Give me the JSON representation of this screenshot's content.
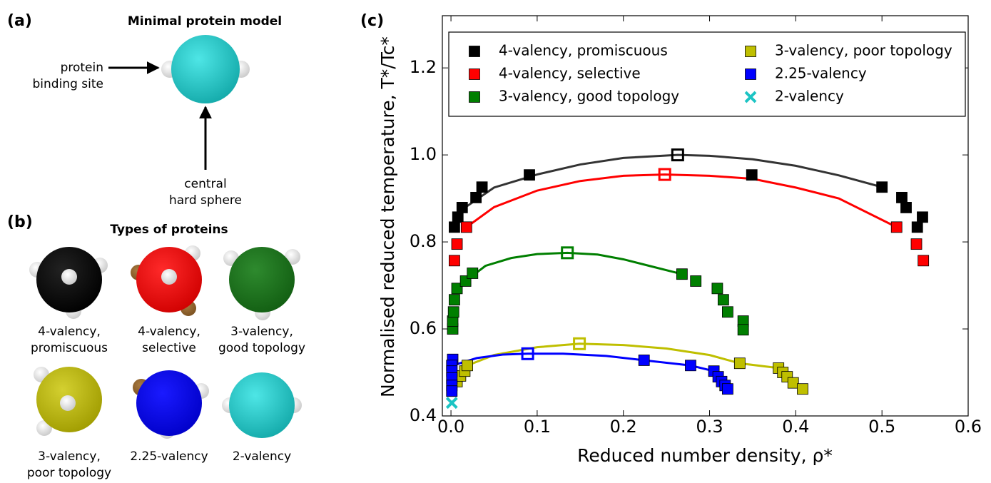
{
  "panel_a": {
    "label": "(a)",
    "title": "Minimal protein model",
    "binding_site": [
      "protein",
      "binding site"
    ],
    "sphere": [
      "central",
      "hard sphere"
    ]
  },
  "panel_b": {
    "label": "(b)",
    "title": "Types of proteins",
    "proteins": [
      [
        "4-valency,",
        "promiscuous"
      ],
      [
        "4-valency,",
        "selective"
      ],
      [
        "3-valency,",
        "good topology"
      ],
      [
        "3-valency,",
        "poor topology"
      ],
      [
        "2.25-valency"
      ],
      [
        "2-valency"
      ]
    ]
  },
  "chart_data": {
    "type": "scatter",
    "panel_label": "(c)",
    "xlabel": "Reduced number density, ρ*",
    "ylabel": "Normalised reduced temperature, T*/Tc*",
    "xlim": [
      -0.01,
      0.6
    ],
    "ylim": [
      0.4,
      1.32
    ],
    "xticks": [
      {
        "value": 0,
        "label": "0.0"
      },
      0.1,
      0.2,
      0.3,
      0.4,
      0.5,
      0.6
    ],
    "yticks": [
      0.4,
      0.6,
      0.8,
      {
        "value": 1,
        "label": "1.0"
      },
      1.2
    ],
    "legend": "upper center",
    "legend_columns": 2,
    "series": [
      {
        "name": "4-valency, promiscuous",
        "color": "#000000",
        "marker": "square",
        "x": [
          0.004,
          0.008,
          0.013,
          0.029,
          0.036,
          0.091,
          0.349,
          0.5,
          0.523,
          0.528,
          0.547,
          0.541
        ],
        "values": [
          0.834,
          0.857,
          0.879,
          0.902,
          0.926,
          0.954,
          0.954,
          0.926,
          0.902,
          0.879,
          0.857,
          0.834
        ],
        "critical": {
          "x": 0.263,
          "value": 1.0
        },
        "fit_x": [
          0.017,
          0.05,
          0.1,
          0.15,
          0.2,
          0.263,
          0.3,
          0.35,
          0.4,
          0.45,
          0.5
        ],
        "fit_values": [
          0.88,
          0.925,
          0.955,
          0.978,
          0.993,
          1.0,
          0.998,
          0.99,
          0.975,
          0.953,
          0.926
        ]
      },
      {
        "name": "4-valency, selective",
        "color": "#ff0000",
        "marker": "square",
        "x": [
          0.004,
          0.007,
          0.018,
          0.517,
          0.54,
          0.548
        ],
        "values": [
          0.757,
          0.795,
          0.834,
          0.834,
          0.795,
          0.757
        ],
        "critical": {
          "x": 0.248,
          "value": 0.955
        },
        "fit_x": [
          0.018,
          0.05,
          0.1,
          0.15,
          0.2,
          0.248,
          0.3,
          0.35,
          0.4,
          0.45,
          0.517
        ],
        "fit_values": [
          0.834,
          0.88,
          0.918,
          0.94,
          0.952,
          0.955,
          0.952,
          0.945,
          0.925,
          0.9,
          0.834
        ]
      },
      {
        "name": "3-valency, good topology",
        "color": "#007f00",
        "marker": "square",
        "x": [
          0.002,
          0.002,
          0.003,
          0.004,
          0.007,
          0.017,
          0.025,
          0.268,
          0.284,
          0.309,
          0.316,
          0.321,
          0.339,
          0.339
        ],
        "values": [
          0.6,
          0.618,
          0.639,
          0.667,
          0.693,
          0.71,
          0.728,
          0.726,
          0.71,
          0.693,
          0.667,
          0.639,
          0.618,
          0.598
        ],
        "critical": {
          "x": 0.135,
          "value": 0.775
        },
        "fit_x": [
          0.017,
          0.04,
          0.07,
          0.1,
          0.135,
          0.17,
          0.2,
          0.23,
          0.268
        ],
        "fit_values": [
          0.71,
          0.745,
          0.763,
          0.772,
          0.775,
          0.771,
          0.76,
          0.745,
          0.726
        ]
      },
      {
        "name": "3-valency, poor topology",
        "color": "#bfbf00",
        "marker": "square",
        "x": [
          0.007,
          0.011,
          0.016,
          0.019,
          0.335,
          0.38,
          0.385,
          0.39,
          0.397,
          0.408
        ],
        "values": [
          0.479,
          0.492,
          0.503,
          0.516,
          0.521,
          0.51,
          0.5,
          0.49,
          0.476,
          0.462
        ],
        "critical": {
          "x": 0.149,
          "value": 0.566
        },
        "fit_x": [
          0.019,
          0.05,
          0.1,
          0.149,
          0.2,
          0.25,
          0.3,
          0.335,
          0.38
        ],
        "fit_values": [
          0.516,
          0.54,
          0.558,
          0.566,
          0.563,
          0.555,
          0.54,
          0.521,
          0.51
        ]
      },
      {
        "name": "2.25-valency",
        "color": "#0000ff",
        "marker": "square",
        "x": [
          0.002,
          0.001,
          0.001,
          0.001,
          0.001,
          0.001,
          0.224,
          0.278,
          0.305,
          0.31,
          0.314,
          0.318,
          0.321
        ],
        "values": [
          0.53,
          0.516,
          0.503,
          0.487,
          0.47,
          0.457,
          0.528,
          0.516,
          0.503,
          0.49,
          0.479,
          0.47,
          0.462
        ],
        "critical": {
          "x": 0.089,
          "value": 0.543
        },
        "fit_x": [
          0.002,
          0.03,
          0.06,
          0.089,
          0.13,
          0.18,
          0.224,
          0.278,
          0.305
        ],
        "fit_values": [
          0.516,
          0.533,
          0.541,
          0.543,
          0.543,
          0.538,
          0.528,
          0.516,
          0.503
        ]
      },
      {
        "name": "2-valency",
        "color": "#1cc4c4",
        "marker": "x",
        "x": [
          0.001
        ],
        "values": [
          0.43
        ]
      }
    ]
  }
}
